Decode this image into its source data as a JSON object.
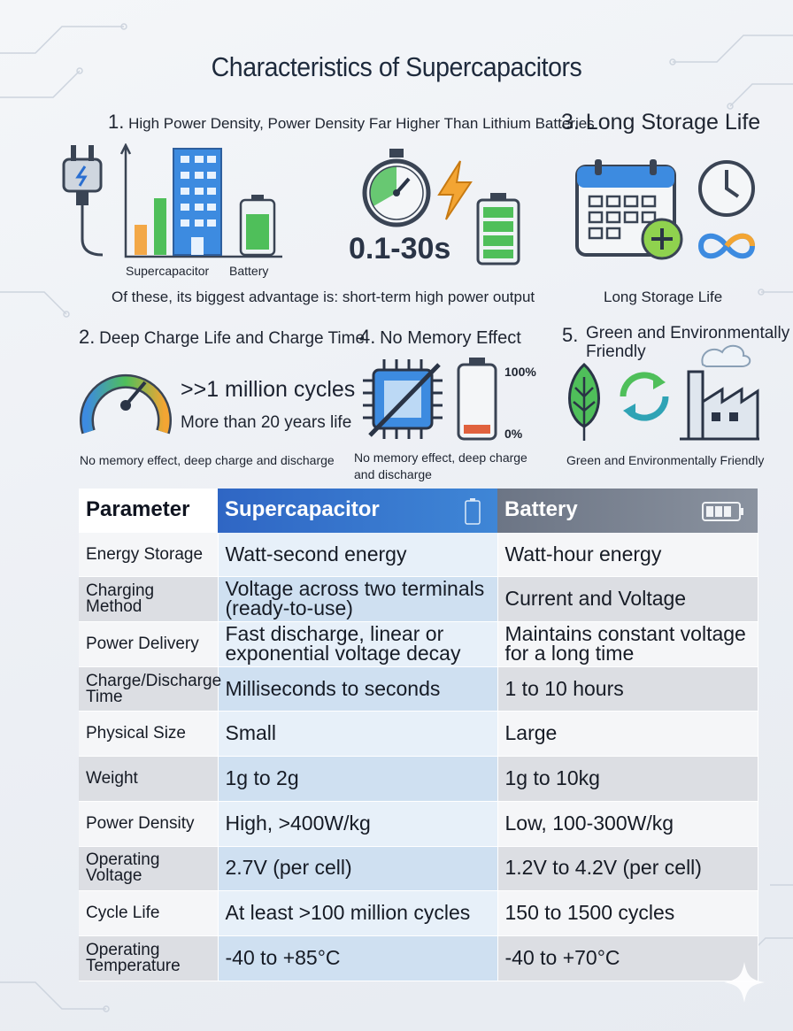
{
  "title": "Characteristics of Supercapacitors",
  "section1": {
    "heading_num": "1.",
    "heading": "High Power Density, Power Density Far Higher Than Lithium Batteries",
    "label_supercap": "Supercapacitor",
    "label_battery": "Battery",
    "time_range": "0.1-30s",
    "caption": "Of these, its biggest advantage is: short-term high power output"
  },
  "section2": {
    "heading_num": "2.",
    "heading": "Deep Charge Life and Charge Time",
    "cycles": ">>1 million cycles",
    "years": "More than 20 years life",
    "caption": "No memory effect, deep charge and discharge"
  },
  "section3": {
    "heading": "3. Long Storage Life",
    "caption": "Long Storage Life"
  },
  "section4": {
    "heading_num": "4.",
    "heading": "No Memory Effect",
    "pct_full": "100%",
    "pct_empty": "0%",
    "caption_line1": "No memory effect, deep charge",
    "caption_line2": "and discharge"
  },
  "section5": {
    "heading_num": "5.",
    "heading_line1": "Green and Environmentally",
    "heading_line2": "Friendly",
    "caption": "Green and Environmentally Friendly"
  },
  "icons": [
    "plug-icon",
    "bar-chart-icon",
    "building-icon",
    "battery-icon",
    "stopwatch-icon",
    "lightning-icon",
    "battery-full-icon",
    "calendar-icon",
    "plus-icon",
    "clock-icon",
    "infinity-icon",
    "gauge-icon",
    "chip-icon",
    "battery-low-icon",
    "leaf-icon",
    "recycle-icon",
    "factory-icon",
    "sparkle-icon"
  ],
  "colors": {
    "accent_blue": "#2f66c4",
    "battery_gray": "#7a8391",
    "green": "#3fae49"
  },
  "table": {
    "headers": [
      "Parameter",
      "Supercapacitor",
      "Battery"
    ],
    "rows": [
      {
        "param": "Energy Storage",
        "sc": "Watt-second energy",
        "bat": "Watt-hour energy"
      },
      {
        "param": "Charging Method",
        "sc": "Voltage across two terminals (ready-to-use)",
        "bat": "Current and Voltage"
      },
      {
        "param": "Power Delivery",
        "sc": "Fast discharge, linear or exponential voltage decay",
        "bat": "Maintains constant voltage for a long time"
      },
      {
        "param": "Charge/Discharge Time",
        "sc": "Milliseconds to seconds",
        "bat": "1 to 10 hours"
      },
      {
        "param": "Physical Size",
        "sc": "Small",
        "bat": "Large"
      },
      {
        "param": "Weight",
        "sc": "1g to 2g",
        "bat": "1g to 10kg"
      },
      {
        "param": "Power Density",
        "sc": "High, >400W/kg",
        "bat": "Low, 100-300W/kg"
      },
      {
        "param": "Operating Voltage",
        "sc": "2.7V (per cell)",
        "bat": "1.2V to 4.2V (per cell)"
      },
      {
        "param": "Cycle Life",
        "sc": "At least >100 million cycles",
        "bat": "150 to 1500 cycles"
      },
      {
        "param": "Operating Temperature",
        "sc": "-40 to +85°C",
        "bat": "-40 to +70°C"
      }
    ]
  }
}
